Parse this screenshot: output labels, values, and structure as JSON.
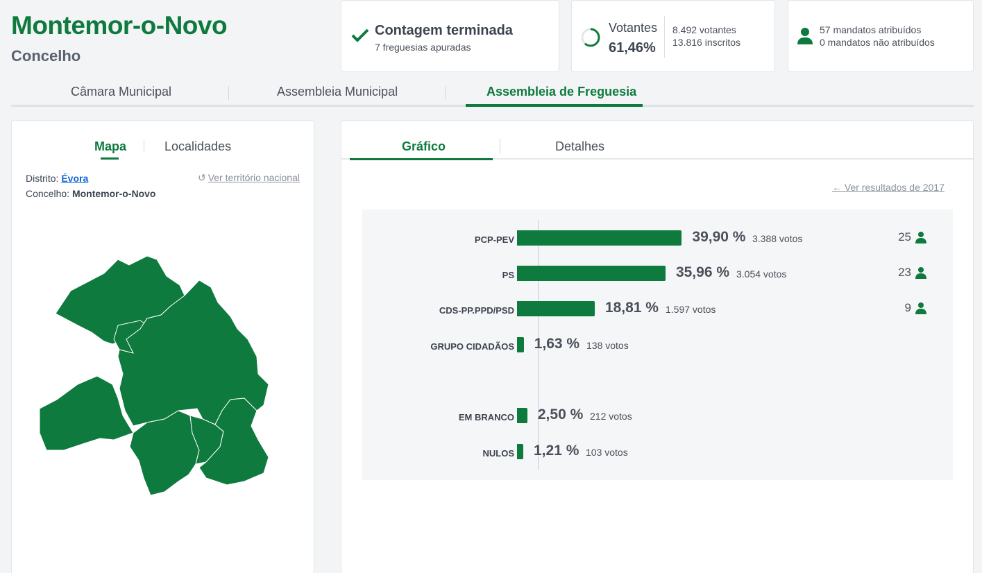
{
  "header": {
    "title": "Montemor-o-Novo",
    "subtitle": "Concelho"
  },
  "status_card": {
    "title": "Contagem terminada",
    "detail": "7 freguesias apuradas"
  },
  "turnout_card": {
    "label": "Votantes",
    "percent": "61,46%",
    "voters": "8.492 votantes",
    "registered": "13.816 inscritos",
    "ring_fraction": 0.6146
  },
  "seats_card": {
    "assigned": "57 mandatos atribuídos",
    "unassigned": "0 mandatos não atribuídos"
  },
  "tabs": [
    "Câmara Municipal",
    "Assembleia Municipal",
    "Assembleia de Freguesia"
  ],
  "left_panel": {
    "tabs": [
      "Mapa",
      "Localidades"
    ],
    "district_label": "Distrito:",
    "district_value": "Évora",
    "county_label": "Concelho:",
    "county_value": "Montemor-o-Novo",
    "reset_link": "Ver território nacional"
  },
  "right_panel": {
    "tabs": [
      "Gráfico",
      "Detalhes"
    ],
    "back_link": "Ver resultados de 2017"
  },
  "chart_data": {
    "type": "bar",
    "orientation": "horizontal",
    "categories": [
      "PCP-PEV",
      "PS",
      "CDS-PP.PPD/PSD",
      "GRUPO CIDADÃOS",
      "EM BRANCO",
      "NULOS"
    ],
    "values": [
      39.9,
      35.96,
      18.81,
      1.63,
      2.5,
      1.21
    ],
    "percent_labels": [
      "39,90 %",
      "35,96 %",
      "18,81 %",
      "1,63 %",
      "2,50 %",
      "1,21 %"
    ],
    "votes_labels": [
      "3.388 votos",
      "3.054 votos",
      "1.597 votos",
      "138 votos",
      "212 votos",
      "103 votos"
    ],
    "seats": [
      "25",
      "23",
      "9",
      "",
      "",
      ""
    ],
    "bar_color": "#0e7a3e"
  },
  "colors": {
    "accent": "#0e7a3e",
    "link": "#1467d6"
  }
}
